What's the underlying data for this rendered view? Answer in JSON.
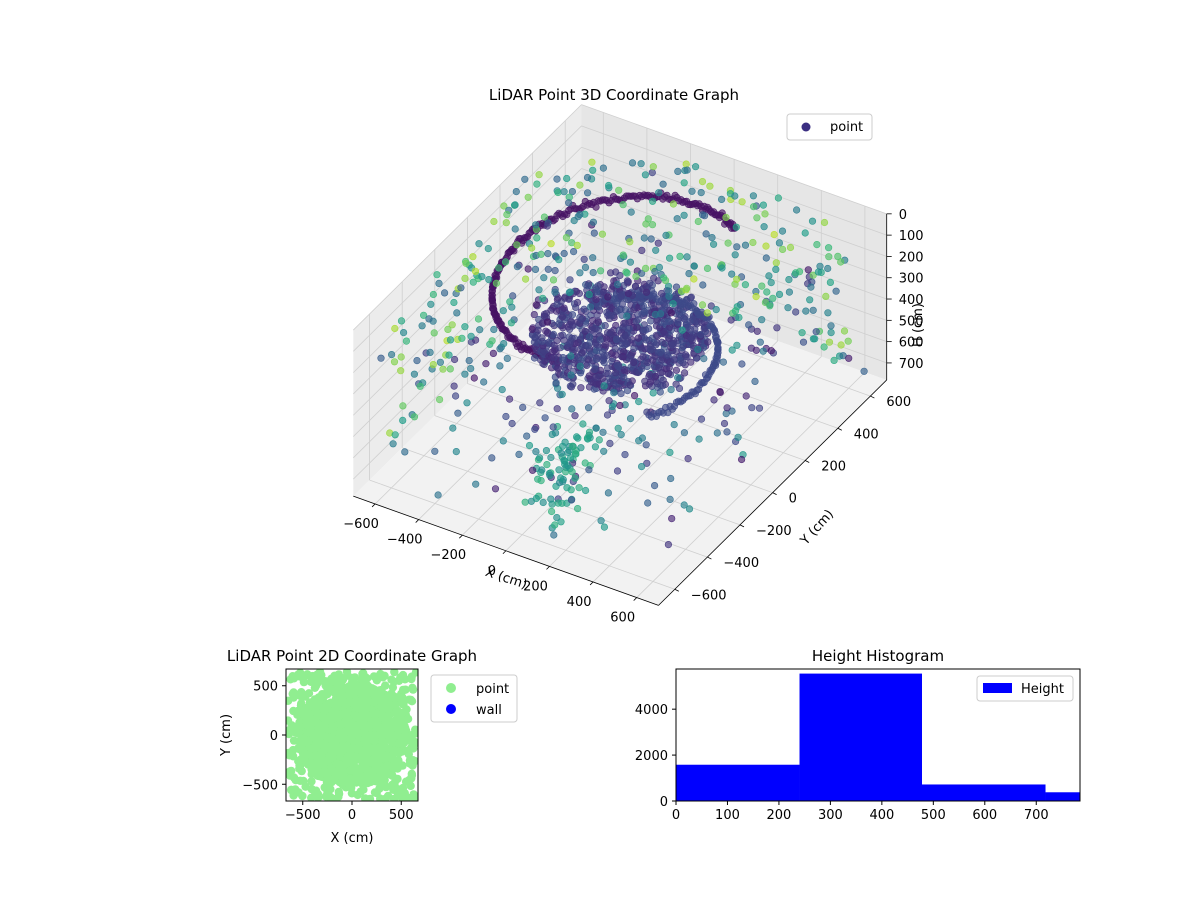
{
  "chart_data": [
    {
      "type": "scatter",
      "projection": "3d",
      "title": "LiDAR Point 3D Coordinate Graph",
      "xlabel": "X (cm)",
      "ylabel": "Y (cm)",
      "zlabel": "H (cm)",
      "xlim": [
        -700,
        700
      ],
      "ylim": [
        -700,
        700
      ],
      "zlim": [
        0,
        780
      ],
      "z_inverted": true,
      "x_ticks": [
        -600,
        -400,
        -200,
        0,
        200,
        400,
        600
      ],
      "x_tick_labels": [
        "−600",
        "−400",
        "−200",
        "0",
        "200",
        "400",
        "600"
      ],
      "y_ticks": [
        -600,
        -400,
        -200,
        0,
        200,
        400,
        600
      ],
      "y_tick_labels": [
        "−600",
        "−400",
        "−200",
        "0",
        "200",
        "400",
        "600"
      ],
      "z_ticks": [
        0,
        100,
        200,
        300,
        400,
        500,
        600,
        700
      ],
      "z_tick_labels": [
        "0",
        "100",
        "200",
        "300",
        "400",
        "500",
        "600",
        "700"
      ],
      "colormap": "viridis",
      "grid": true,
      "legend": {
        "entries": [
          "point"
        ],
        "position": "upper right"
      },
      "series": [
        {
          "name": "point",
          "color_by": "distance",
          "marker_color": "#3b2f82",
          "description_points": [
            {
              "x": 0,
              "y": 0,
              "h": 300
            },
            {
              "x": 100,
              "y": -50,
              "h": 320
            },
            {
              "x": -100,
              "y": 50,
              "h": 310
            },
            {
              "x": 50,
              "y": 100,
              "h": 350
            },
            {
              "x": -50,
              "y": -100,
              "h": 300
            },
            {
              "x": 200,
              "y": 0,
              "h": 340
            },
            {
              "x": -200,
              "y": 0,
              "h": 320
            },
            {
              "x": 0,
              "y": 200,
              "h": 330
            },
            {
              "x": 0,
              "y": -200,
              "h": 310
            },
            {
              "x": 150,
              "y": 150,
              "h": 360
            },
            {
              "x": -150,
              "y": -150,
              "h": 290
            },
            {
              "x": 300,
              "y": -200,
              "h": 400
            },
            {
              "x": -300,
              "y": 200,
              "h": 250
            },
            {
              "x": 400,
              "y": 400,
              "h": 100
            },
            {
              "x": -400,
              "y": -400,
              "h": 600
            },
            {
              "x": 600,
              "y": -600,
              "h": 50
            },
            {
              "x": -600,
              "y": 600,
              "h": 700
            }
          ]
        }
      ]
    },
    {
      "type": "scatter",
      "title": "LiDAR Point 2D Coordinate Graph",
      "xlabel": "X (cm)",
      "ylabel": "Y (cm)",
      "xlim": [
        -670,
        670
      ],
      "ylim": [
        -670,
        670
      ],
      "x_ticks": [
        -500,
        0,
        500
      ],
      "x_tick_labels": [
        "−500",
        "0",
        "500"
      ],
      "y_ticks": [
        -500,
        0,
        500
      ],
      "y_tick_labels": [
        "−500",
        "0",
        "500"
      ],
      "legend": {
        "entries": [
          "point",
          "wall"
        ],
        "position": "outside right"
      },
      "series": [
        {
          "name": "point",
          "color": "#90ee90",
          "extent": {
            "x": [
              -650,
              650
            ],
            "y": [
              -650,
              650
            ]
          },
          "count_estimate": 9000
        },
        {
          "name": "wall",
          "color": "#0000ff",
          "points": []
        }
      ]
    },
    {
      "type": "bar",
      "subtype": "histogram",
      "title": "Height Histogram",
      "xlim": [
        0,
        785
      ],
      "ylim": [
        0,
        5750
      ],
      "x_ticks": [
        0,
        100,
        200,
        300,
        400,
        500,
        600,
        700
      ],
      "x_tick_labels": [
        "0",
        "100",
        "200",
        "300",
        "400",
        "500",
        "600",
        "700"
      ],
      "y_ticks": [
        0,
        2000,
        4000
      ],
      "y_tick_labels": [
        "0",
        "2000",
        "4000"
      ],
      "legend": {
        "entries": [
          "Height"
        ],
        "position": "upper right"
      },
      "series": [
        {
          "name": "Height",
          "color": "#0000ff",
          "bins": [
            {
              "x0": 0,
              "x1": 240,
              "count": 1580
            },
            {
              "x0": 240,
              "x1": 478,
              "count": 5550
            },
            {
              "x0": 478,
              "x1": 718,
              "count": 720
            },
            {
              "x0": 718,
              "x1": 785,
              "count": 380
            }
          ]
        }
      ]
    }
  ]
}
